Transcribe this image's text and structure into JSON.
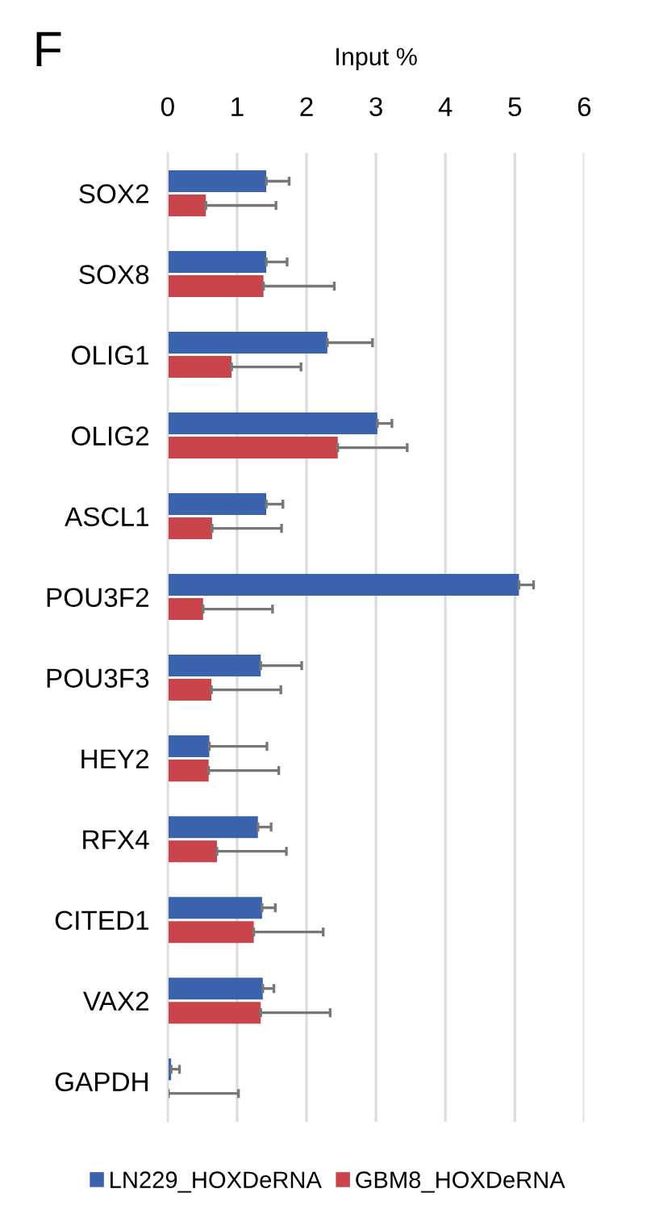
{
  "chart_data": {
    "type": "bar",
    "orientation": "horizontal",
    "xlabel": "Input %",
    "categories": [
      "SOX2",
      "SOX8",
      "OLIG1",
      "OLIG2",
      "ASCL1",
      "POU3F2",
      "POU3F3",
      "HEY2",
      "RFX4",
      "CITED1",
      "VAX2",
      "GAPDH"
    ],
    "series": [
      {
        "name": "LN229_HOXDeRNA",
        "color": "#3a62ad",
        "values": [
          1.42,
          1.42,
          2.3,
          3.02,
          1.42,
          5.06,
          1.34,
          0.6,
          1.3,
          1.36,
          1.37,
          0.05
        ],
        "errors": [
          [
            1.42,
            1.75
          ],
          [
            1.42,
            1.72
          ],
          [
            2.3,
            2.95
          ],
          [
            3.02,
            3.23
          ],
          [
            1.42,
            1.66
          ],
          [
            5.06,
            5.27
          ],
          [
            1.34,
            1.93
          ],
          [
            0.6,
            1.43
          ],
          [
            1.3,
            1.49
          ],
          [
            1.36,
            1.55
          ],
          [
            1.37,
            1.53
          ],
          [
            0.05,
            0.17
          ]
        ]
      },
      {
        "name": "GBM8_HOXDeRNA",
        "color": "#c9444b",
        "values": [
          0.55,
          1.38,
          0.92,
          2.45,
          0.64,
          0.51,
          0.63,
          0.59,
          0.71,
          1.24,
          1.34,
          0.01
        ],
        "errors": [
          [
            0.55,
            1.56
          ],
          [
            1.38,
            2.4
          ],
          [
            0.92,
            1.92
          ],
          [
            2.45,
            3.45
          ],
          [
            0.64,
            1.64
          ],
          [
            0.51,
            1.51
          ],
          [
            0.63,
            1.63
          ],
          [
            0.59,
            1.6
          ],
          [
            0.71,
            1.71
          ],
          [
            1.24,
            2.24
          ],
          [
            1.34,
            2.34
          ],
          [
            0.01,
            1.02
          ]
        ]
      }
    ],
    "xlim": [
      0,
      6
    ],
    "xticks": [
      0,
      1,
      2,
      3,
      4,
      5,
      6
    ],
    "grid": "x",
    "legend": "bottom",
    "annotations": [
      "F"
    ]
  }
}
